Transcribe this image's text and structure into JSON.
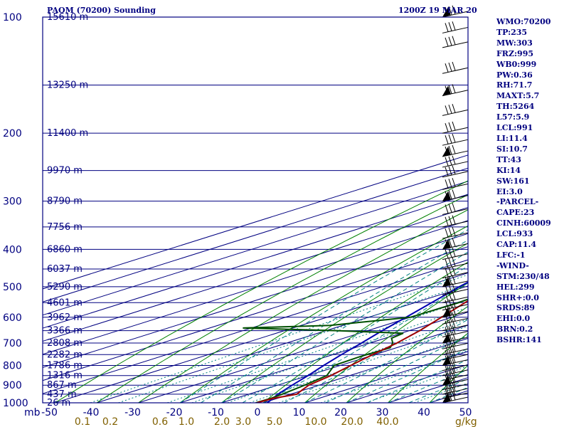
{
  "header": {
    "station": "PAOM (70200) Sounding",
    "valid_time": "1200Z 19 MAR 20"
  },
  "indices": [
    "WMO:70200",
    "TP:235",
    "MW:303",
    "FRZ:995",
    "WB0:999",
    "PW:0.36",
    "RH:71.7",
    "MAXT:5.7",
    "TH:5264",
    "L57:5.9",
    "LCL:991",
    "LI:11.4",
    "SI:10.7",
    "TT:43",
    "KI:14",
    "SW:161",
    "EI:3.0",
    "-PARCEL-",
    "CAPE:23",
    "CINH:60009",
    "LCL:933",
    "CAP:11.4",
    "LFC:-1",
    "-WIND-",
    "STM:230/48",
    "HEL:299",
    "SHR+:0.0",
    "SRDS:89",
    "EHI:0.0",
    "BRN:0.2",
    "BSHR:141"
  ],
  "colors": {
    "frame": "#000080",
    "isobars": "#000080",
    "isotherms": "#000080",
    "dry_adiabats": "#008000",
    "mixing_ratio": "#008080",
    "moist_adiabats": "#008080",
    "temperature": "#a00000",
    "dewpoint": "#005000",
    "parcel": "#0000b0",
    "axis_text": "#000080",
    "mixing_text": "#806000",
    "barbs": "#000000"
  },
  "chart_data": {
    "type": "skew-t log-p",
    "pressure_unit": "mb",
    "pressure_range": [
      1000,
      100
    ],
    "temperature_axis": "-50 to 50 C (skewed)",
    "pressure_ticks": [
      "100",
      "200",
      "300",
      "400",
      "500",
      "600",
      "700",
      "800",
      "900",
      "1000"
    ],
    "temperature_ticks": [
      "-50",
      "-40",
      "-30",
      "-20",
      "-10",
      "0",
      "10",
      "20",
      "30",
      "40",
      "50"
    ],
    "mixing_ratio_unit": "g/kg",
    "mixing_ratio_ticks": [
      "0.1",
      "0.2",
      "0.6",
      "1.0",
      "2.0",
      "3.0",
      "5.0",
      "10.0",
      "20.0",
      "40.0"
    ],
    "height_labels": [
      {
        "p": 100,
        "text": "15610 m"
      },
      {
        "p": 150,
        "text": "13250 m"
      },
      {
        "p": 200,
        "text": "11400 m"
      },
      {
        "p": 250,
        "text": "9970 m"
      },
      {
        "p": 300,
        "text": "8790 m"
      },
      {
        "p": 350,
        "text": "7756 m"
      },
      {
        "p": 400,
        "text": "6860 m"
      },
      {
        "p": 450,
        "text": "6037 m"
      },
      {
        "p": 500,
        "text": "5290 m"
      },
      {
        "p": 550,
        "text": "4601 m"
      },
      {
        "p": 600,
        "text": "3962 m"
      },
      {
        "p": 650,
        "text": "3366 m"
      },
      {
        "p": 700,
        "text": "2808 m"
      },
      {
        "p": 750,
        "text": "2282 m"
      },
      {
        "p": 800,
        "text": "1786 m"
      },
      {
        "p": 850,
        "text": "1316 m"
      },
      {
        "p": 900,
        "text": "867 m"
      },
      {
        "p": 950,
        "text": "437 m"
      },
      {
        "p": 1000,
        "text": "26 m"
      }
    ],
    "temperature": [
      {
        "p": 1000,
        "t": -1.5
      },
      {
        "p": 975,
        "t": -1.0
      },
      {
        "p": 950,
        "t": 1.5
      },
      {
        "p": 925,
        "t": -0.5
      },
      {
        "p": 900,
        "t": -2.5
      },
      {
        "p": 850,
        "t": -4.5
      },
      {
        "p": 800,
        "t": -7.5
      },
      {
        "p": 750,
        "t": -10.5
      },
      {
        "p": 700,
        "t": -13.5
      },
      {
        "p": 650,
        "t": -17.5
      },
      {
        "p": 600,
        "t": -22.5
      },
      {
        "p": 550,
        "t": -28.0
      },
      {
        "p": 500,
        "t": -34.0
      },
      {
        "p": 450,
        "t": -39.5
      },
      {
        "p": 400,
        "t": -45.0
      },
      {
        "p": 350,
        "t": -49.5
      },
      {
        "p": 300,
        "t": -53.0
      },
      {
        "p": 250,
        "t": -58.0
      },
      {
        "p": 235,
        "t": -60.5
      },
      {
        "p": 200,
        "t": -52.0
      },
      {
        "p": 150,
        "t": -51.0
      },
      {
        "p": 100,
        "t": -53.0
      }
    ],
    "dewpoint": [
      {
        "p": 1000,
        "t": -1.8
      },
      {
        "p": 975,
        "t": -1.5
      },
      {
        "p": 950,
        "t": -2.0
      },
      {
        "p": 900,
        "t": -3.5
      },
      {
        "p": 850,
        "t": -5.5
      },
      {
        "p": 800,
        "t": -11.5
      },
      {
        "p": 760,
        "t": -12.0
      },
      {
        "p": 720,
        "t": -11.5
      },
      {
        "p": 700,
        "t": -14.5
      },
      {
        "p": 680,
        "t": -18.5
      },
      {
        "p": 660,
        "t": -19.5
      },
      {
        "p": 650,
        "t": -37.5
      },
      {
        "p": 640,
        "t": -62.0
      },
      {
        "p": 630,
        "t": -43.0
      },
      {
        "p": 600,
        "t": -30.0
      },
      {
        "p": 550,
        "t": -29.5
      },
      {
        "p": 510,
        "t": -31.0
      },
      {
        "p": 500,
        "t": -31.5
      },
      {
        "p": 490,
        "t": -41.0
      },
      {
        "p": 470,
        "t": -37.5
      },
      {
        "p": 460,
        "t": -36.0
      },
      {
        "p": 450,
        "t": -40.0
      },
      {
        "p": 400,
        "t": -66.0
      },
      {
        "p": 300,
        "t": -71.5
      },
      {
        "p": 250,
        "t": -74.0
      },
      {
        "p": 200,
        "t": -78.0
      },
      {
        "p": 150,
        "t": -80.0
      },
      {
        "p": 100,
        "t": -85.0
      }
    ],
    "parcel": [
      {
        "p": 1000,
        "t": 1.0
      },
      {
        "p": 950,
        "t": -3.0
      },
      {
        "p": 900,
        "t": -6.5
      },
      {
        "p": 850,
        "t": -10.0
      },
      {
        "p": 800,
        "t": -14.0
      },
      {
        "p": 750,
        "t": -18.0
      },
      {
        "p": 700,
        "t": -22.0
      },
      {
        "p": 650,
        "t": -26.5
      },
      {
        "p": 600,
        "t": -31.0
      },
      {
        "p": 550,
        "t": -36.0
      },
      {
        "p": 500,
        "t": -41.5
      },
      {
        "p": 450,
        "t": -47.0
      },
      {
        "p": 400,
        "t": -53.0
      },
      {
        "p": 350,
        "t": -60.0
      },
      {
        "p": 300,
        "t": -67.0
      },
      {
        "p": 250,
        "t": -75.0
      },
      {
        "p": 200,
        "t": -85.0
      },
      {
        "p": 150,
        "t": -97.0
      },
      {
        "p": 100,
        "t": -113.0
      }
    ],
    "wind_pressures": [
      100,
      110,
      120,
      140,
      160,
      180,
      200,
      215,
      230,
      245,
      260,
      280,
      300,
      325,
      350,
      375,
      400,
      425,
      450,
      475,
      500,
      525,
      550,
      575,
      600,
      625,
      650,
      675,
      700,
      725,
      750,
      775,
      800,
      825,
      850,
      875,
      900,
      925,
      950,
      975,
      1000
    ]
  }
}
